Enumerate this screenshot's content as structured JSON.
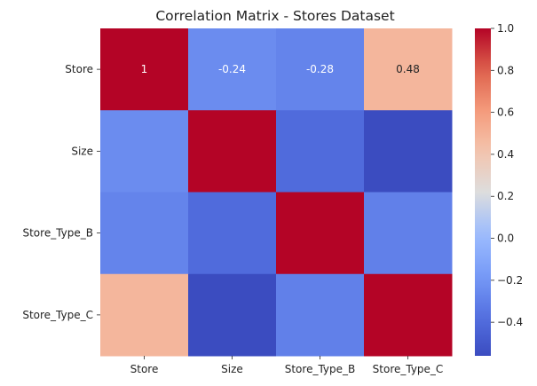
{
  "chart_data": {
    "type": "heatmap",
    "title": "Correlation Matrix - Stores Dataset",
    "rows": [
      "Store",
      "Size",
      "Store_Type_B",
      "Store_Type_C"
    ],
    "cols": [
      "Store",
      "Size",
      "Store_Type_B",
      "Store_Type_C"
    ],
    "values": [
      [
        1.0,
        -0.24,
        -0.28,
        0.48
      ],
      [
        -0.24,
        1.0,
        -0.4,
        -0.56
      ],
      [
        -0.28,
        -0.4,
        1.0,
        -0.3
      ],
      [
        0.48,
        -0.56,
        -0.3,
        1.0
      ]
    ],
    "annotations": [
      [
        "1",
        "-0.24",
        "-0.28",
        "0.48"
      ],
      [
        "",
        "",
        "",
        ""
      ],
      [
        "",
        "",
        "",
        ""
      ],
      [
        "",
        "",
        "",
        ""
      ]
    ],
    "colormap": "coolwarm",
    "colorbar": {
      "range": [
        -0.56,
        1.0
      ],
      "ticks": [
        -0.4,
        -0.2,
        0.0,
        0.2,
        0.4,
        0.6,
        0.8,
        1.0
      ],
      "tick_labels": [
        "−0.4",
        "−0.2",
        "0.0",
        "0.2",
        "0.4",
        "0.6",
        "0.8",
        "1.0"
      ]
    }
  }
}
